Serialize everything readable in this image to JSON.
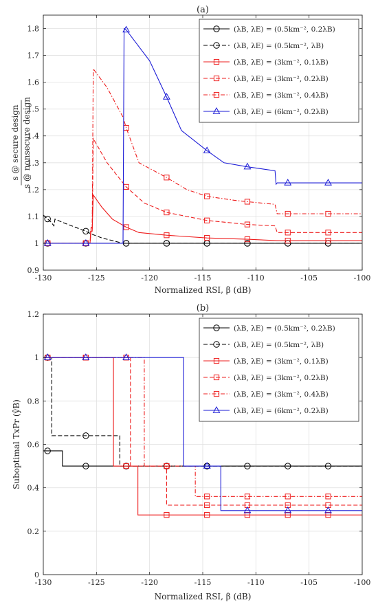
{
  "colors": {
    "black": "#000000",
    "red": "#ee1c1c",
    "blue": "#1b1bd6",
    "grid": "#e0e0e0",
    "axis": "#262626"
  },
  "legend_entries": [
    {
      "text": "(λB, λE) = (0.5km⁻², 0.2λB)",
      "color": "#000000",
      "dash": "solid",
      "marker": "circle"
    },
    {
      "text": "(λB, λE) = (0.5km⁻², λB)",
      "color": "#000000",
      "dash": "dashed",
      "marker": "circle"
    },
    {
      "text": "(λB, λE) = (3km⁻², 0.1λB)",
      "color": "#ee1c1c",
      "dash": "solid",
      "marker": "square"
    },
    {
      "text": "(λB, λE) = (3km⁻², 0.2λB)",
      "color": "#ee1c1c",
      "dash": "dashed",
      "marker": "square"
    },
    {
      "text": "(λB, λE) = (3km⁻², 0.4λB)",
      "color": "#ee1c1c",
      "dash": "dashdot",
      "marker": "square"
    },
    {
      "text": "(λB, λE) = (6km⁻², 0.2λB)",
      "color": "#1b1bd6",
      "dash": "solid",
      "marker": "triangle"
    }
  ],
  "chart_data": [
    {
      "type": "line",
      "title": "(a)",
      "xlabel": "Normalized RSI, β (dB)",
      "ylabel": "s @ secure design / s @ nonsecure design",
      "xlim": [
        -130,
        -100
      ],
      "ylim": [
        0.9,
        1.85
      ],
      "xticks": [
        -130,
        -125,
        -120,
        -115,
        -110,
        -105,
        -100
      ],
      "yticks": [
        0.9,
        1,
        1.1,
        1.2,
        1.3,
        1.4,
        1.5,
        1.6,
        1.7,
        1.8
      ],
      "xtick_labels": [
        "-130",
        "-125",
        "-120",
        "-115",
        "-110",
        "-105",
        "-100"
      ],
      "ytick_labels": [
        "0.9",
        "1",
        "1.1",
        "1.2",
        "1.3",
        "1.4",
        "1.5",
        "1.6",
        "1.7",
        "1.8"
      ],
      "grid": true,
      "legend_position": "top-right",
      "series": [
        {
          "legend": 0,
          "points": [
            [
              -130,
              1
            ],
            [
              -100,
              1
            ]
          ],
          "markers_x": [
            -129.6,
            -126,
            -122.2,
            -118.4,
            -114.6,
            -110.8,
            -107,
            -103.2
          ]
        },
        {
          "legend": 1,
          "points": [
            [
              -130,
              1.105
            ],
            [
              -129.3,
              1.08
            ],
            [
              -129,
              1.065
            ],
            [
              -128.9,
              1.09
            ],
            [
              -128,
              1.075
            ],
            [
              -126,
              1.045
            ],
            [
              -125.5,
              1.035
            ],
            [
              -124.5,
              1.02
            ],
            [
              -123,
              1.005
            ],
            [
              -122.5,
              1
            ],
            [
              -100,
              1
            ]
          ],
          "markers_x": [
            -129.6,
            -126,
            -122.2,
            -118.4,
            -114.6,
            -110.8,
            -107,
            -103.2
          ]
        },
        {
          "legend": 2,
          "points": [
            [
              -130,
              1
            ],
            [
              -125.6,
              1
            ],
            [
              -125.55,
              1.045
            ],
            [
              -125.4,
              1.045
            ],
            [
              -125.3,
              1.18
            ],
            [
              -124.5,
              1.135
            ],
            [
              -123.5,
              1.09
            ],
            [
              -122.2,
              1.06
            ],
            [
              -121,
              1.04
            ],
            [
              -118.4,
              1.03
            ],
            [
              -114.6,
              1.02
            ],
            [
              -110.8,
              1.015
            ],
            [
              -108,
              1.01
            ],
            [
              -100,
              1.01
            ]
          ],
          "markers_x": [
            -129.6,
            -126,
            -122.2,
            -118.4,
            -114.6,
            -110.8,
            -107,
            -103.2
          ]
        },
        {
          "legend": 3,
          "points": [
            [
              -130,
              1
            ],
            [
              -125.6,
              1
            ],
            [
              -125.5,
              1.05
            ],
            [
              -125.4,
              1.05
            ],
            [
              -125.3,
              1.39
            ],
            [
              -124,
              1.3
            ],
            [
              -122.2,
              1.21
            ],
            [
              -120.5,
              1.15
            ],
            [
              -118.4,
              1.115
            ],
            [
              -116.5,
              1.1
            ],
            [
              -114.6,
              1.085
            ],
            [
              -112,
              1.075
            ],
            [
              -110.8,
              1.07
            ],
            [
              -108.2,
              1.065
            ],
            [
              -108,
              1.04
            ],
            [
              -107,
              1.04
            ],
            [
              -103.2,
              1.04
            ],
            [
              -100,
              1.04
            ]
          ],
          "markers_x": [
            -129.6,
            -126,
            -122.2,
            -118.4,
            -114.6,
            -110.8,
            -107,
            -103.2
          ]
        },
        {
          "legend": 4,
          "points": [
            [
              -130,
              1
            ],
            [
              -125.6,
              1
            ],
            [
              -125.5,
              1.06
            ],
            [
              -125.4,
              1.06
            ],
            [
              -125.3,
              1.65
            ],
            [
              -124,
              1.58
            ],
            [
              -122.5,
              1.47
            ],
            [
              -122.2,
              1.43
            ],
            [
              -121,
              1.3
            ],
            [
              -118.4,
              1.245
            ],
            [
              -116.5,
              1.2
            ],
            [
              -114.6,
              1.175
            ],
            [
              -112,
              1.16
            ],
            [
              -110.8,
              1.155
            ],
            [
              -108.2,
              1.145
            ],
            [
              -108,
              1.11
            ],
            [
              -107,
              1.11
            ],
            [
              -103.2,
              1.11
            ],
            [
              -100,
              1.11
            ]
          ],
          "markers_x": [
            -129.6,
            -126,
            -122.2,
            -118.4,
            -114.6,
            -110.8,
            -107,
            -103.2
          ]
        },
        {
          "legend": 5,
          "points": [
            [
              -130,
              1
            ],
            [
              -122.5,
              1
            ],
            [
              -122.4,
              1.8
            ],
            [
              -122.2,
              1.795
            ],
            [
              -120,
              1.68
            ],
            [
              -118.4,
              1.545
            ],
            [
              -117,
              1.42
            ],
            [
              -114.6,
              1.345
            ],
            [
              -113,
              1.3
            ],
            [
              -110.8,
              1.285
            ],
            [
              -108.2,
              1.27
            ],
            [
              -108.1,
              1.22
            ],
            [
              -108,
              1.225
            ],
            [
              -107,
              1.225
            ],
            [
              -103.2,
              1.225
            ],
            [
              -100,
              1.225
            ]
          ],
          "markers_x": [
            -129.6,
            -126,
            -122.2,
            -114.6,
            -110.8,
            -107,
            -103.2
          ],
          "markers_y_override": {
            "-118.4": 1.545
          }
        }
      ]
    },
    {
      "type": "line",
      "title": "(b)",
      "xlabel": "Normalized RSI, β (dB)",
      "ylabel": "Suboptimal TxPr (ŷB)",
      "xlim": [
        -130,
        -100
      ],
      "ylim": [
        0,
        1.2
      ],
      "xticks": [
        -130,
        -125,
        -120,
        -115,
        -110,
        -105,
        -100
      ],
      "yticks": [
        0,
        0.2,
        0.4,
        0.6,
        0.8,
        1,
        1.2
      ],
      "xtick_labels": [
        "-130",
        "-125",
        "-120",
        "-115",
        "-110",
        "-105",
        "-100"
      ],
      "ytick_labels": [
        "0",
        "0.2",
        "0.4",
        "0.6",
        "0.8",
        "1",
        "1.2"
      ],
      "grid": true,
      "legend_position": "top-right",
      "series": [
        {
          "legend": 0,
          "points": [
            [
              -130,
              0.57
            ],
            [
              -128.2,
              0.57
            ],
            [
              -128.2,
              0.5
            ],
            [
              -100,
              0.5
            ]
          ],
          "markers_x": [
            -129.6,
            -126,
            -122.2,
            -118.4,
            -114.6,
            -110.8,
            -107,
            -103.2
          ]
        },
        {
          "legend": 1,
          "points": [
            [
              -130,
              1
            ],
            [
              -129.2,
              1
            ],
            [
              -129.2,
              0.64
            ],
            [
              -122.8,
              0.64
            ],
            [
              -122.8,
              0.5
            ],
            [
              -100,
              0.5
            ]
          ],
          "markers_x": [
            -129.6,
            -126,
            -122.2,
            -118.4,
            -114.6
          ]
        },
        {
          "legend": 2,
          "points": [
            [
              -130,
              1
            ],
            [
              -123.4,
              1
            ],
            [
              -123.4,
              0.5
            ],
            [
              -121.1,
              0.5
            ],
            [
              -121.1,
              0.275
            ],
            [
              -100,
              0.275
            ]
          ],
          "markers_x": [
            -129.6,
            -126,
            -122.2,
            -118.4,
            -114.6,
            -110.8,
            -107,
            -103.2
          ]
        },
        {
          "legend": 3,
          "points": [
            [
              -130,
              1
            ],
            [
              -121.8,
              1
            ],
            [
              -121.8,
              0.5
            ],
            [
              -118.4,
              0.5
            ],
            [
              -118.4,
              0.32
            ],
            [
              -100,
              0.32
            ]
          ],
          "markers_x": [
            -129.6,
            -126,
            -122.2,
            -118.4,
            -114.6,
            -110.8,
            -107,
            -103.2
          ]
        },
        {
          "legend": 4,
          "points": [
            [
              -130,
              1
            ],
            [
              -120.5,
              1
            ],
            [
              -120.5,
              0.5
            ],
            [
              -115.7,
              0.5
            ],
            [
              -115.7,
              0.36
            ],
            [
              -100,
              0.36
            ]
          ],
          "markers_x": [
            -129.6,
            -126,
            -122.2,
            -118.4,
            -114.6,
            -110.8,
            -107,
            -103.2
          ]
        },
        {
          "legend": 5,
          "points": [
            [
              -130,
              1
            ],
            [
              -116.8,
              1
            ],
            [
              -116.8,
              0.5
            ],
            [
              -113.3,
              0.5
            ],
            [
              -113.3,
              0.295
            ],
            [
              -100,
              0.295
            ]
          ],
          "markers_x": [
            -129.6,
            -126,
            -122.2,
            -114.6,
            -110.8,
            -107,
            -103.2
          ]
        }
      ]
    }
  ]
}
